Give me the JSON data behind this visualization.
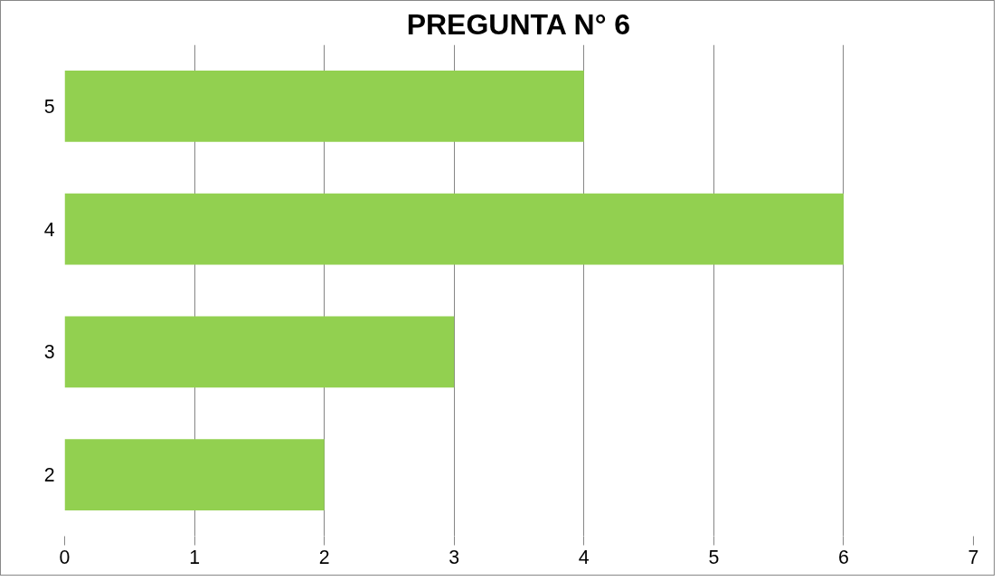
{
  "chart_data": {
    "type": "bar",
    "orientation": "horizontal",
    "title": "PREGUNTA N° 6",
    "categories": [
      "5",
      "4",
      "3",
      "2"
    ],
    "values": [
      4,
      6,
      3,
      2
    ],
    "color": "#92d050",
    "xlim": [
      0,
      7
    ],
    "xticks": [
      0,
      1,
      2,
      3,
      4,
      5,
      6,
      7
    ],
    "grid": "x"
  }
}
